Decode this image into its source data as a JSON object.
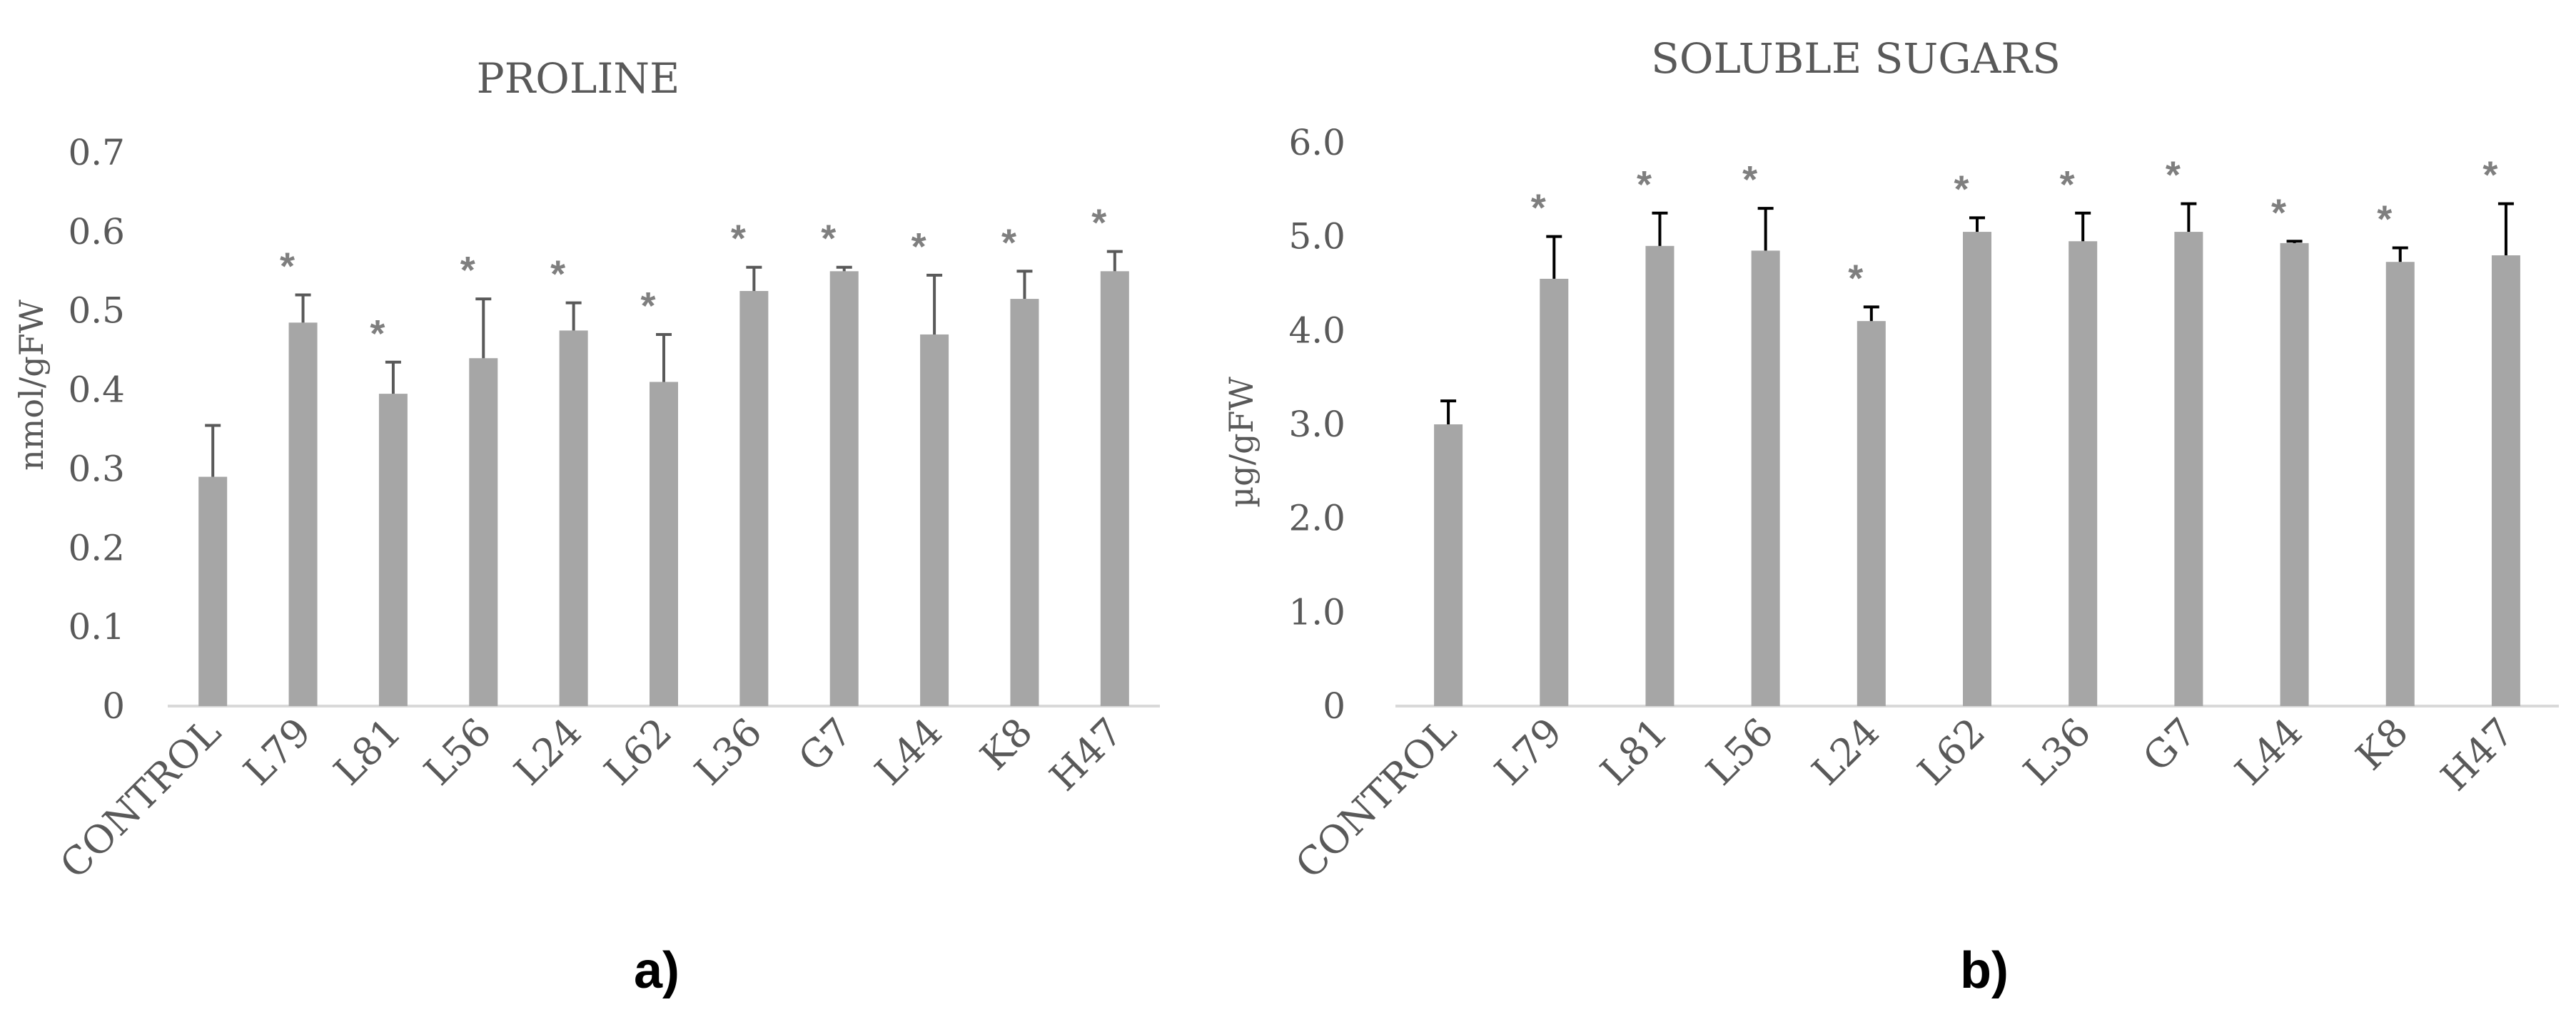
{
  "chart_data": [
    {
      "type": "bar",
      "title": "PROLINE",
      "ylabel": "nmol/gFW",
      "xlabel": "",
      "panel_label": "a)",
      "ylim": [
        0,
        0.7
      ],
      "yticks": [
        "0",
        "0.1",
        "0.2",
        "0.3",
        "0.4",
        "0.5",
        "0.6",
        "0.7"
      ],
      "categories": [
        "CONTROL",
        "L79",
        "L81",
        "L56",
        "L24",
        "L62",
        "L36",
        "G7",
        "L44",
        "K8",
        "H47"
      ],
      "values": [
        0.29,
        0.485,
        0.395,
        0.44,
        0.475,
        0.41,
        0.525,
        0.55,
        0.47,
        0.515,
        0.55
      ],
      "errors": [
        0.065,
        0.035,
        0.04,
        0.075,
        0.035,
        0.06,
        0.03,
        0.005,
        0.075,
        0.035,
        0.025
      ],
      "significance": [
        "",
        "*",
        "*",
        "*",
        "*",
        "*",
        "*",
        "*",
        "*",
        "*",
        "*"
      ],
      "grid": false,
      "bar_color": "#a6a6a6",
      "error_color": "#595959"
    },
    {
      "type": "bar",
      "title": "SOLUBLE SUGARS",
      "ylabel": "µg/gFW",
      "xlabel": "",
      "panel_label": "b)",
      "ylim": [
        0,
        6.0
      ],
      "yticks": [
        "0",
        "1.0",
        "2.0",
        "3.0",
        "4.0",
        "5.0",
        "6.0"
      ],
      "categories": [
        "CONTROL",
        "L79",
        "L81",
        "L56",
        "L24",
        "L62",
        "L36",
        "G7",
        "L44",
        "K8",
        "H47"
      ],
      "values": [
        3.0,
        4.55,
        4.9,
        4.85,
        4.1,
        5.05,
        4.95,
        5.05,
        4.93,
        4.73,
        4.8
      ],
      "errors": [
        0.25,
        0.45,
        0.35,
        0.45,
        0.15,
        0.15,
        0.3,
        0.3,
        0.02,
        0.15,
        0.55
      ],
      "significance": [
        "",
        "*",
        "*",
        "*",
        "*",
        "*",
        "*",
        "*",
        "*",
        "*",
        "*"
      ],
      "grid": false,
      "bar_color": "#a6a6a6",
      "error_color": "#000000"
    }
  ]
}
